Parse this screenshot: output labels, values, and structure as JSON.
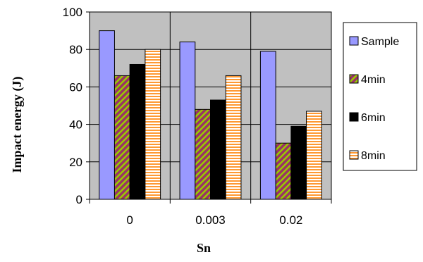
{
  "chart_data": {
    "type": "bar",
    "title": "",
    "xlabel": "Sn",
    "ylabel": "Impact energy (J)",
    "categories": [
      "0",
      "0.003",
      "0.02"
    ],
    "ylim": [
      0,
      100
    ],
    "yticks": [
      0,
      20,
      40,
      60,
      80,
      100
    ],
    "grid": true,
    "plot_background": "#c0c0c0",
    "legend_position": "right",
    "series": [
      {
        "name": "Sample",
        "values": [
          90,
          84,
          79
        ],
        "color": "#9999ff",
        "pattern": "solid"
      },
      {
        "name": "4min",
        "values": [
          66,
          48,
          30
        ],
        "color": "#993366",
        "pattern": "diagonal-stripes",
        "pattern_color": "#99cc00"
      },
      {
        "name": "6min",
        "values": [
          72,
          53,
          39
        ],
        "color": "#000000",
        "pattern": "solid"
      },
      {
        "name": "8min",
        "values": [
          80,
          66,
          47
        ],
        "color": "#ffffff",
        "pattern": "horizontal-stripes",
        "pattern_color": "#ff9933"
      }
    ]
  }
}
